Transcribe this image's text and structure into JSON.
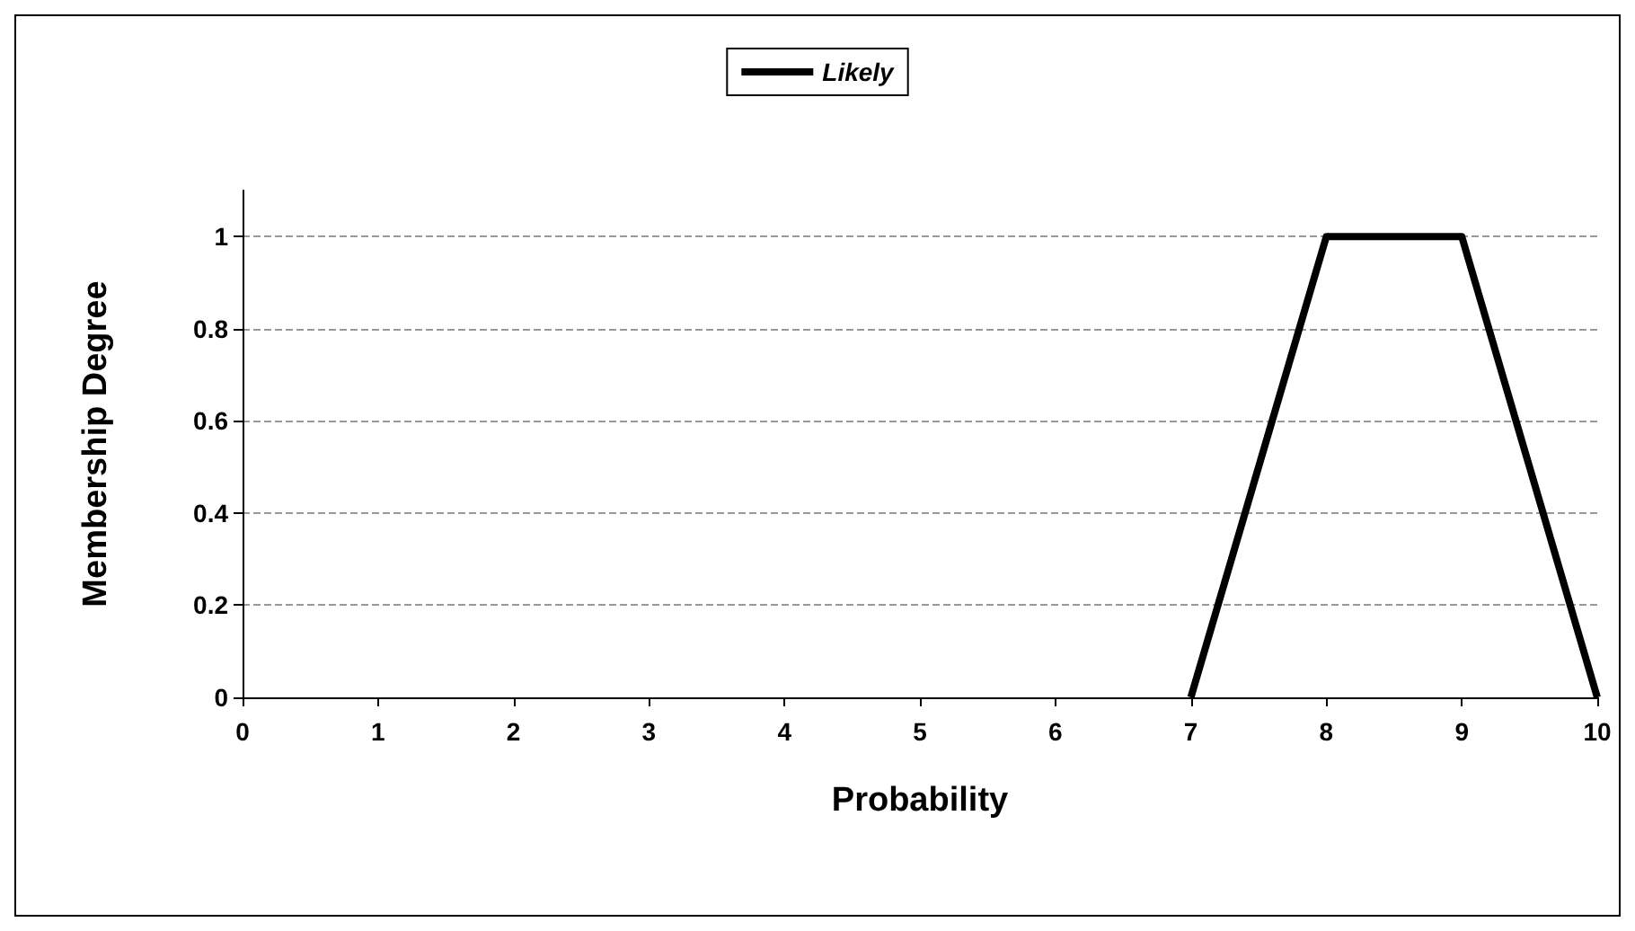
{
  "chart_data": {
    "type": "line",
    "xlabel": "Probability",
    "ylabel": "Membership Degree",
    "x": [
      7,
      8,
      9,
      10
    ],
    "series": [
      {
        "name": "Likely",
        "color": "#000000",
        "values": [
          0,
          1,
          1,
          0
        ]
      }
    ],
    "xlim": [
      0,
      10
    ],
    "xticks": [
      0,
      1,
      2,
      3,
      4,
      5,
      6,
      7,
      8,
      9,
      10
    ],
    "ylim": [
      0,
      1.1
    ],
    "yticks": [
      0,
      0.2,
      0.4,
      0.6,
      0.8,
      1
    ],
    "grid": "y",
    "legend": "top",
    "marker": "none",
    "line_style": "solid"
  }
}
